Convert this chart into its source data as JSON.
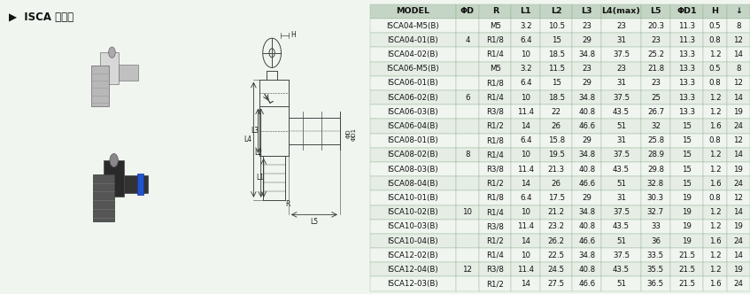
{
  "title": "ISCA 节流阀",
  "bg_color": "#f0f5f0",
  "left_bg": "#f0f5f0",
  "diag_bg": "#e8eee8",
  "header_bg": "#c5d5c5",
  "row_bg1": "#f0f5f0",
  "row_bg2": "#e5ede5",
  "line_color": "#555555",
  "header": [
    "MODEL",
    "ΦD",
    "R",
    "L1",
    "L2",
    "L3",
    "L4(max)",
    "L5",
    "ΦD1",
    "H",
    "↓"
  ],
  "col_widths": [
    1.55,
    0.42,
    0.58,
    0.52,
    0.58,
    0.52,
    0.72,
    0.52,
    0.6,
    0.42,
    0.42
  ],
  "rows": [
    [
      "ISCA04-M5(B)",
      "",
      "M5",
      "3.2",
      "10.5",
      "23",
      "23",
      "20.3",
      "11.3",
      "0.5",
      "8"
    ],
    [
      "ISCA04-01(B)",
      "4",
      "R1/8",
      "6.4",
      "15",
      "29",
      "31",
      "23",
      "11.3",
      "0.8",
      "12"
    ],
    [
      "ISCA04-02(B)",
      "",
      "R1/4",
      "10",
      "18.5",
      "34.8",
      "37.5",
      "25.2",
      "13.3",
      "1.2",
      "14"
    ],
    [
      "ISCA06-M5(B)",
      "",
      "M5",
      "3.2",
      "11.5",
      "23",
      "23",
      "21.8",
      "13.3",
      "0.5",
      "8"
    ],
    [
      "ISCA06-01(B)",
      "",
      "R1/8",
      "6.4",
      "15",
      "29",
      "31",
      "23",
      "13.3",
      "0.8",
      "12"
    ],
    [
      "ISCA06-02(B)",
      "6",
      "R1/4",
      "10",
      "18.5",
      "34.8",
      "37.5",
      "25",
      "13.3",
      "1.2",
      "14"
    ],
    [
      "ISCA06-03(B)",
      "",
      "R3/8",
      "11.4",
      "22",
      "40.8",
      "43.5",
      "26.7",
      "13.3",
      "1.2",
      "19"
    ],
    [
      "ISCA06-04(B)",
      "",
      "R1/2",
      "14",
      "26",
      "46.6",
      "51",
      "32",
      "15",
      "1.6",
      "24"
    ],
    [
      "ISCA08-01(B)",
      "",
      "R1/8",
      "6.4",
      "15.8",
      "29",
      "31",
      "25.8",
      "15",
      "0.8",
      "12"
    ],
    [
      "ISCA08-02(B)",
      "8",
      "R1/4",
      "10",
      "19.5",
      "34.8",
      "37.5",
      "28.9",
      "15",
      "1.2",
      "14"
    ],
    [
      "ISCA08-03(B)",
      "",
      "R3/8",
      "11.4",
      "21.3",
      "40.8",
      "43.5",
      "29.8",
      "15",
      "1.2",
      "19"
    ],
    [
      "ISCA08-04(B)",
      "",
      "R1/2",
      "14",
      "26",
      "46.6",
      "51",
      "32.8",
      "15",
      "1.6",
      "24"
    ],
    [
      "ISCA10-01(B)",
      "",
      "R1/8",
      "6.4",
      "17.5",
      "29",
      "31",
      "30.3",
      "19",
      "0.8",
      "12"
    ],
    [
      "ISCA10-02(B)",
      "10",
      "R1/4",
      "10",
      "21.2",
      "34.8",
      "37.5",
      "32.7",
      "19",
      "1.2",
      "14"
    ],
    [
      "ISCA10-03(B)",
      "",
      "R3/8",
      "11.4",
      "23.2",
      "40.8",
      "43.5",
      "33",
      "19",
      "1.2",
      "19"
    ],
    [
      "ISCA10-04(B)",
      "",
      "R1/2",
      "14",
      "26.2",
      "46.6",
      "51",
      "36",
      "19",
      "1.6",
      "24"
    ],
    [
      "ISCA12-02(B)",
      "",
      "R1/4",
      "10",
      "22.5",
      "34.8",
      "37.5",
      "33.5",
      "21.5",
      "1.2",
      "14"
    ],
    [
      "ISCA12-04(B)",
      "12",
      "R3/8",
      "11.4",
      "24.5",
      "40.8",
      "43.5",
      "35.5",
      "21.5",
      "1.2",
      "19"
    ],
    [
      "ISCA12-03(B)",
      "",
      "R1/2",
      "14",
      "27.5",
      "46.6",
      "51",
      "36.5",
      "21.5",
      "1.6",
      "24"
    ]
  ],
  "font_size": 6.2,
  "header_font_size": 6.8
}
